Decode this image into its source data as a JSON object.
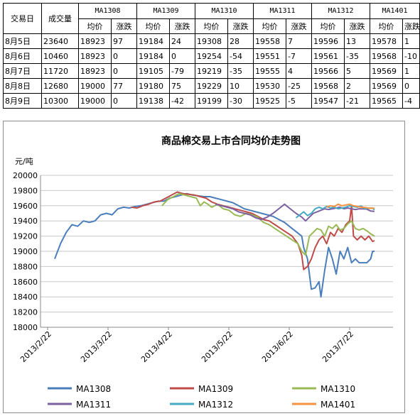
{
  "table": {
    "h_date": "交易日",
    "h_volume": "成交量",
    "contracts": [
      "MA1308",
      "MA1309",
      "MA1310",
      "MA1311",
      "MA1312",
      "MA1401"
    ],
    "sub_avg": "均价",
    "sub_chg": "涨跌",
    "rows": [
      {
        "date": "8月5日",
        "volume": "23640",
        "cells": [
          "18923",
          "97",
          "19184",
          "24",
          "19308",
          "28",
          "19558",
          "7",
          "19596",
          "13",
          "19578",
          "1"
        ]
      },
      {
        "date": "8月6日",
        "volume": "10460",
        "cells": [
          "18923",
          "0",
          "19184",
          "0",
          "19254",
          "-54",
          "19551",
          "-7",
          "19561",
          "-35",
          "19568",
          "-10"
        ]
      },
      {
        "date": "8月7日",
        "volume": "11720",
        "cells": [
          "18923",
          "0",
          "19105",
          "-79",
          "19219",
          "-35",
          "19555",
          "4",
          "19566",
          "5",
          "19569",
          "1"
        ]
      },
      {
        "date": "8月8日",
        "volume": "12680",
        "cells": [
          "19000",
          "77",
          "19180",
          "75",
          "19229",
          "10",
          "19530",
          "-25",
          "19568",
          "2",
          "19569",
          "0"
        ]
      },
      {
        "date": "8月9日",
        "volume": "10300",
        "cells": [
          "19000",
          "0",
          "19138",
          "-42",
          "19199",
          "-30",
          "19525",
          "-5",
          "19547",
          "-21",
          "19565",
          "-4"
        ]
      }
    ]
  },
  "chart_data": {
    "type": "line",
    "title": "商品棉交易上市合同均价走势图",
    "ylabel": "元/吨",
    "ylim": [
      18000,
      20000
    ],
    "yticks": [
      "20000",
      "19800",
      "19600",
      "19400",
      "19200",
      "19000",
      "18800",
      "18600",
      "18400",
      "18200",
      "18000"
    ],
    "xticks": [
      "2013/2/22",
      "2013/3/22",
      "2013/4/22",
      "2013/5/22",
      "2013/6/22",
      "2013/7/22"
    ],
    "x_range_days": [
      0,
      167
    ],
    "grid": "horizontal",
    "legend_position": "bottom",
    "series": [
      {
        "name": "MA1308",
        "color": "#4a7ebb",
        "points": [
          [
            0,
            18900
          ],
          [
            3,
            19100
          ],
          [
            6,
            19250
          ],
          [
            9,
            19350
          ],
          [
            12,
            19330
          ],
          [
            15,
            19400
          ],
          [
            18,
            19380
          ],
          [
            21,
            19400
          ],
          [
            24,
            19480
          ],
          [
            27,
            19500
          ],
          [
            30,
            19480
          ],
          [
            33,
            19560
          ],
          [
            36,
            19580
          ],
          [
            39,
            19570
          ],
          [
            42,
            19590
          ],
          [
            45,
            19600
          ],
          [
            48,
            19620
          ],
          [
            51,
            19640
          ],
          [
            54,
            19660
          ],
          [
            57,
            19660
          ],
          [
            60,
            19700
          ],
          [
            63,
            19720
          ],
          [
            66,
            19740
          ],
          [
            69,
            19760
          ],
          [
            72,
            19740
          ],
          [
            75,
            19730
          ],
          [
            78,
            19720
          ],
          [
            81,
            19720
          ],
          [
            84,
            19700
          ],
          [
            87,
            19680
          ],
          [
            90,
            19660
          ],
          [
            93,
            19640
          ],
          [
            96,
            19600
          ],
          [
            99,
            19560
          ],
          [
            102,
            19540
          ],
          [
            105,
            19520
          ],
          [
            108,
            19500
          ],
          [
            111,
            19480
          ],
          [
            114,
            19460
          ],
          [
            117,
            19420
          ],
          [
            120,
            19380
          ],
          [
            123,
            19320
          ],
          [
            126,
            19260
          ],
          [
            129,
            19200
          ],
          [
            130,
            19050
          ],
          [
            132,
            18900
          ],
          [
            133,
            18700
          ],
          [
            134,
            18500
          ],
          [
            136,
            18520
          ],
          [
            138,
            18600
          ],
          [
            139,
            18400
          ],
          [
            141,
            18750
          ],
          [
            143,
            19050
          ],
          [
            145,
            18900
          ],
          [
            147,
            18700
          ],
          [
            149,
            19000
          ],
          [
            151,
            18900
          ],
          [
            153,
            19050
          ],
          [
            155,
            18850
          ],
          [
            157,
            18900
          ],
          [
            159,
            18850
          ],
          [
            161,
            18850
          ],
          [
            163,
            18850
          ],
          [
            165,
            18900
          ],
          [
            166,
            19000
          ],
          [
            167,
            19000
          ]
        ]
      },
      {
        "name": "MA1309",
        "color": "#be4b48",
        "points": [
          [
            40,
            19580
          ],
          [
            43,
            19570
          ],
          [
            46,
            19600
          ],
          [
            49,
            19620
          ],
          [
            52,
            19650
          ],
          [
            55,
            19660
          ],
          [
            58,
            19700
          ],
          [
            61,
            19740
          ],
          [
            64,
            19780
          ],
          [
            67,
            19760
          ],
          [
            70,
            19750
          ],
          [
            73,
            19740
          ],
          [
            76,
            19720
          ],
          [
            79,
            19700
          ],
          [
            82,
            19650
          ],
          [
            85,
            19620
          ],
          [
            88,
            19600
          ],
          [
            91,
            19580
          ],
          [
            94,
            19560
          ],
          [
            97,
            19540
          ],
          [
            100,
            19520
          ],
          [
            103,
            19500
          ],
          [
            106,
            19460
          ],
          [
            109,
            19420
          ],
          [
            112,
            19400
          ],
          [
            115,
            19350
          ],
          [
            118,
            19300
          ],
          [
            121,
            19250
          ],
          [
            124,
            19200
          ],
          [
            127,
            19100
          ],
          [
            129,
            18950
          ],
          [
            130,
            18760
          ],
          [
            132,
            18800
          ],
          [
            134,
            18900
          ],
          [
            136,
            19050
          ],
          [
            138,
            19150
          ],
          [
            140,
            19200
          ],
          [
            142,
            19100
          ],
          [
            144,
            19250
          ],
          [
            146,
            19200
          ],
          [
            148,
            19300
          ],
          [
            150,
            19250
          ],
          [
            152,
            19350
          ],
          [
            154,
            19400
          ],
          [
            155,
            19600
          ],
          [
            156,
            19200
          ],
          [
            158,
            19150
          ],
          [
            160,
            19200
          ],
          [
            162,
            19150
          ],
          [
            164,
            19200
          ],
          [
            166,
            19130
          ],
          [
            167,
            19140
          ]
        ]
      },
      {
        "name": "MA1310",
        "color": "#98b954",
        "points": [
          [
            56,
            19600
          ],
          [
            59,
            19680
          ],
          [
            62,
            19720
          ],
          [
            65,
            19760
          ],
          [
            68,
            19740
          ],
          [
            71,
            19720
          ],
          [
            74,
            19700
          ],
          [
            76,
            19600
          ],
          [
            78,
            19650
          ],
          [
            80,
            19620
          ],
          [
            82,
            19580
          ],
          [
            85,
            19620
          ],
          [
            88,
            19560
          ],
          [
            91,
            19540
          ],
          [
            94,
            19480
          ],
          [
            97,
            19460
          ],
          [
            100,
            19500
          ],
          [
            103,
            19480
          ],
          [
            106,
            19450
          ],
          [
            109,
            19380
          ],
          [
            112,
            19350
          ],
          [
            115,
            19300
          ],
          [
            118,
            19250
          ],
          [
            121,
            19200
          ],
          [
            124,
            19150
          ],
          [
            127,
            19100
          ],
          [
            129,
            19000
          ],
          [
            131,
            18950
          ],
          [
            133,
            19200
          ],
          [
            135,
            19250
          ],
          [
            137,
            19300
          ],
          [
            139,
            19280
          ],
          [
            141,
            19200
          ],
          [
            143,
            19330
          ],
          [
            145,
            19300
          ],
          [
            147,
            19350
          ],
          [
            149,
            19280
          ],
          [
            151,
            19300
          ],
          [
            153,
            19360
          ],
          [
            155,
            19400
          ],
          [
            157,
            19300
          ],
          [
            159,
            19280
          ],
          [
            161,
            19300
          ],
          [
            163,
            19270
          ],
          [
            165,
            19230
          ],
          [
            167,
            19200
          ]
        ]
      },
      {
        "name": "MA1311",
        "color": "#7d60a0",
        "points": [
          [
            84,
            19620
          ],
          [
            87,
            19600
          ],
          [
            90,
            19580
          ],
          [
            93,
            19560
          ],
          [
            96,
            19520
          ],
          [
            99,
            19500
          ],
          [
            102,
            19480
          ],
          [
            105,
            19440
          ],
          [
            108,
            19420
          ],
          [
            111,
            19450
          ],
          [
            114,
            19500
          ],
          [
            117,
            19560
          ],
          [
            120,
            19620
          ],
          [
            123,
            19560
          ],
          [
            126,
            19500
          ],
          [
            129,
            19450
          ],
          [
            131,
            19400
          ],
          [
            133,
            19450
          ],
          [
            135,
            19500
          ],
          [
            137,
            19520
          ],
          [
            139,
            19540
          ],
          [
            141,
            19560
          ],
          [
            143,
            19550
          ],
          [
            145,
            19560
          ],
          [
            147,
            19570
          ],
          [
            149,
            19580
          ],
          [
            151,
            19560
          ],
          [
            153,
            19570
          ],
          [
            155,
            19560
          ],
          [
            157,
            19550
          ],
          [
            159,
            19560
          ],
          [
            161,
            19558
          ],
          [
            163,
            19555
          ],
          [
            165,
            19530
          ],
          [
            167,
            19525
          ]
        ]
      },
      {
        "name": "MA1312",
        "color": "#46aac5",
        "points": [
          [
            126,
            19440
          ],
          [
            128,
            19480
          ],
          [
            130,
            19520
          ],
          [
            132,
            19470
          ],
          [
            134,
            19500
          ],
          [
            136,
            19560
          ],
          [
            138,
            19580
          ],
          [
            140,
            19560
          ],
          [
            142,
            19590
          ],
          [
            144,
            19570
          ],
          [
            146,
            19580
          ],
          [
            148,
            19560
          ],
          [
            150,
            19570
          ],
          [
            152,
            19580
          ],
          [
            154,
            19600
          ],
          [
            156,
            19590
          ],
          [
            158,
            19580
          ],
          [
            160,
            19596
          ],
          [
            162,
            19561
          ],
          [
            164,
            19566
          ],
          [
            166,
            19568
          ],
          [
            167,
            19547
          ]
        ]
      },
      {
        "name": "MA1401",
        "color": "#f69240",
        "points": [
          [
            142,
            19580
          ],
          [
            144,
            19600
          ],
          [
            146,
            19590
          ],
          [
            148,
            19620
          ],
          [
            150,
            19600
          ],
          [
            152,
            19610
          ],
          [
            154,
            19620
          ],
          [
            156,
            19600
          ],
          [
            158,
            19590
          ],
          [
            160,
            19580
          ],
          [
            162,
            19578
          ],
          [
            164,
            19568
          ],
          [
            166,
            19569
          ],
          [
            167,
            19565
          ]
        ]
      }
    ]
  }
}
